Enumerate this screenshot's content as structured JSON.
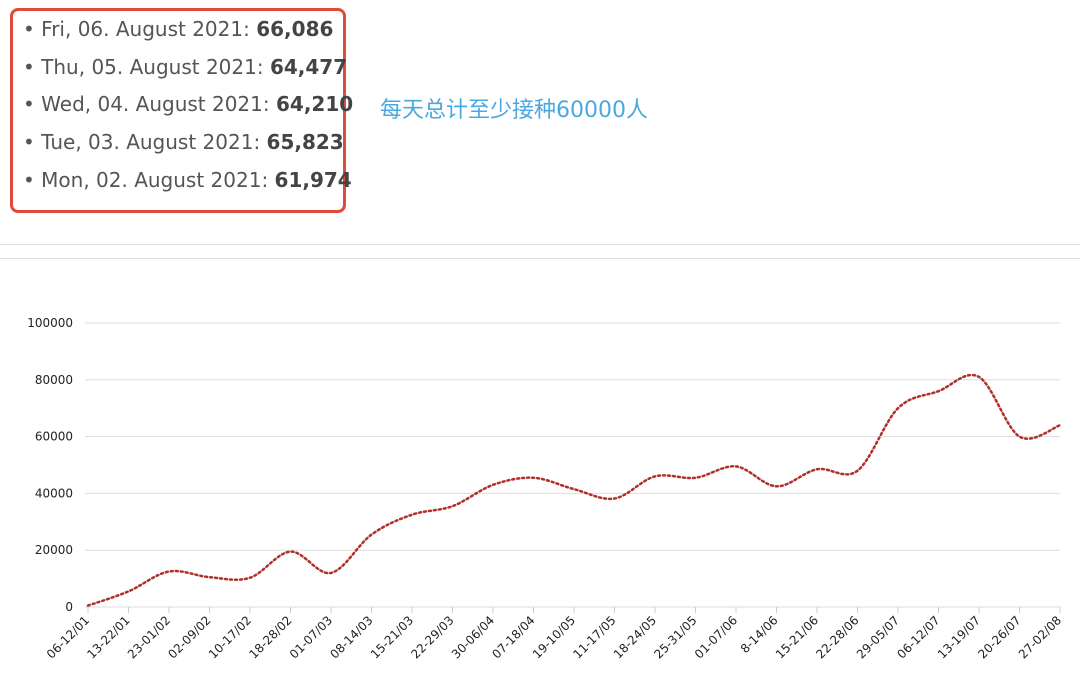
{
  "list": [
    {
      "label": "Fri, 06. August 2021:",
      "value": "66,086"
    },
    {
      "label": "Thu, 05. August 2021:",
      "value": "64,477"
    },
    {
      "label": "Wed, 04. August 2021:",
      "value": "64,210"
    },
    {
      "label": "Tue, 03. August 2021:",
      "value": "65,823"
    },
    {
      "label": "Mon, 02. August 2021:",
      "value": "61,974"
    }
  ],
  "annotation": "每天总计至少接种60000人",
  "chart_data": {
    "type": "line",
    "categories": [
      "06-12/01",
      "13-22/01",
      "23-01/02",
      "02-09/02",
      "10-17/02",
      "18-28/02",
      "01-07/03",
      "08-14/03",
      "15-21/03",
      "22-29/03",
      "30-06/04",
      "07-18/04",
      "19-10/05",
      "11-17/05",
      "18-24/05",
      "25-31/05",
      "01-07/06",
      "8-14/06",
      "15-21/06",
      "22-28/06",
      "29-05/07",
      "06-12/07",
      "13-19/07",
      "20-26/07",
      "27-02/08"
    ],
    "series": [
      {
        "color": "#b0302a",
        "values": [
          500,
          5500,
          12500,
          10500,
          10300,
          19500,
          12000,
          25500,
          32500,
          35500,
          43000,
          45500,
          41500,
          38200,
          46000,
          45500,
          49500,
          42500,
          48500,
          48000,
          70000,
          76000,
          81000,
          60000,
          64000
        ]
      }
    ],
    "ylim": [
      0,
      100000
    ],
    "yticks": [
      0,
      20000,
      40000,
      60000,
      80000,
      100000
    ],
    "grid": true
  }
}
